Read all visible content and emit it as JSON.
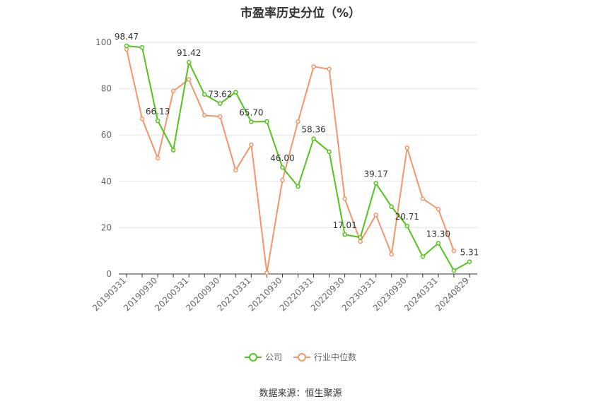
{
  "chart_data": {
    "type": "line",
    "title": "市盈率历史分位（%）",
    "xlabel": "",
    "ylabel": "",
    "ylim": [
      0,
      100
    ],
    "yticks": [
      "0",
      "20",
      "40",
      "60",
      "80",
      "100"
    ],
    "x": [
      "20190331",
      "20190630",
      "20190930",
      "20191231",
      "20200331",
      "20200630",
      "20200930",
      "20201231",
      "20210331",
      "20210630",
      "20210930",
      "20211231",
      "20220331",
      "20220630",
      "20220930",
      "20221231",
      "20230331",
      "20230630",
      "20230930",
      "20231231",
      "20240331",
      "20240630",
      "20240829"
    ],
    "xtick_labels": [
      "20190331",
      "20190930",
      "20200331",
      "20200930",
      "20210331",
      "20210930",
      "20220331",
      "20220930",
      "20230331",
      "20230930",
      "20240331",
      "20240829"
    ],
    "series": [
      {
        "name": "公司",
        "color": "#52c41a",
        "values": [
          98.47,
          97.8,
          66.13,
          53.5,
          91.42,
          77.5,
          73.62,
          78.5,
          65.7,
          65.8,
          46.0,
          37.8,
          58.36,
          52.8,
          17.01,
          15.8,
          39.17,
          29.0,
          20.71,
          7.5,
          13.3,
          1.5,
          5.31
        ],
        "data_labels": [
          {
            "index": 0,
            "text": "98.47"
          },
          {
            "index": 2,
            "text": "66.13"
          },
          {
            "index": 4,
            "text": "91.42"
          },
          {
            "index": 6,
            "text": "73.62"
          },
          {
            "index": 8,
            "text": "65.70"
          },
          {
            "index": 10,
            "text": "46.00"
          },
          {
            "index": 12,
            "text": "58.36"
          },
          {
            "index": 14,
            "text": "17.01"
          },
          {
            "index": 16,
            "text": "39.17"
          },
          {
            "index": 18,
            "text": "20.71"
          },
          {
            "index": 20,
            "text": "13.30"
          },
          {
            "index": 22,
            "text": "5.31"
          }
        ]
      },
      {
        "name": "行业中位数",
        "color": "#f5956b",
        "values": [
          97.0,
          67.0,
          50.0,
          79.0,
          84.0,
          68.5,
          68.0,
          44.8,
          55.8,
          0.5,
          40.5,
          65.8,
          89.5,
          88.5,
          32.5,
          14.0,
          25.5,
          8.5,
          54.5,
          32.5,
          28.0,
          10.0,
          null
        ],
        "data_labels": []
      }
    ],
    "grid": true,
    "legend_position": "bottom-center"
  },
  "source_text": "数据来源：恒生聚源"
}
